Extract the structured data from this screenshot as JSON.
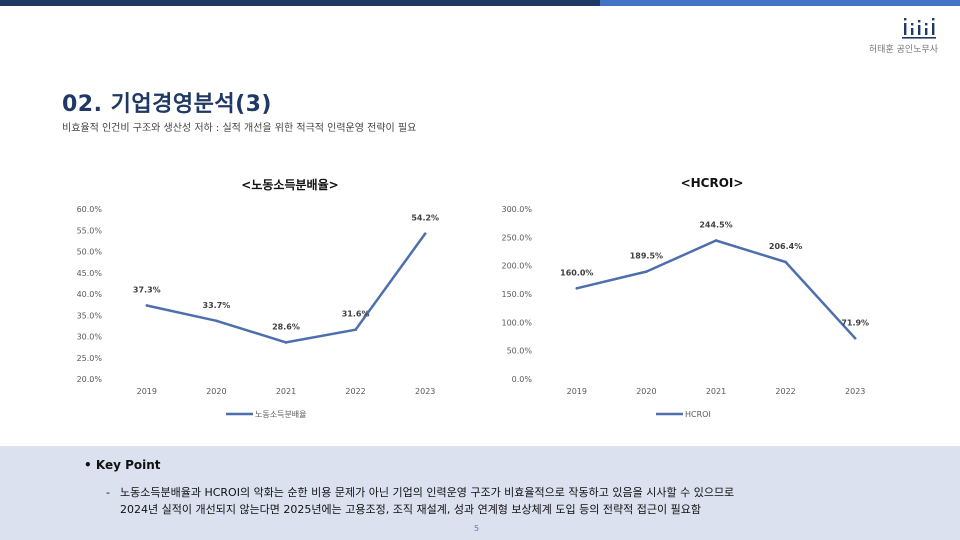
{
  "header": {
    "company": "허태훈 공인노무사",
    "title": "02. 기업경영분석(3)",
    "subtitle": "비효율적 인건비 구조와 생산성 저하 : 실적 개선을 위한 적극적 인력운영 전략이 필요"
  },
  "colors": {
    "primary": "#1f3864",
    "accent": "#4472c4",
    "series": "#4e6fae",
    "panel": "#dbe1ef"
  },
  "chart_data": [
    {
      "type": "line",
      "title": "<노동소득분배율>",
      "categories": [
        "2019",
        "2020",
        "2021",
        "2022",
        "2023"
      ],
      "series": [
        {
          "name": "노동소득분배율",
          "values": [
            37.3,
            33.7,
            28.6,
            31.6,
            54.2
          ]
        }
      ],
      "data_labels": [
        "37.3%",
        "33.7%",
        "28.6%",
        "31.6%",
        "54.2%"
      ],
      "ylim": [
        20,
        60
      ],
      "yticks": [
        "20.0%",
        "25.0%",
        "30.0%",
        "35.0%",
        "40.0%",
        "45.0%",
        "50.0%",
        "55.0%",
        "60.0%"
      ],
      "legend": "bottom",
      "grid": false
    },
    {
      "type": "line",
      "title": "<HCROI>",
      "categories": [
        "2019",
        "2020",
        "2021",
        "2022",
        "2023"
      ],
      "series": [
        {
          "name": "HCROI",
          "values": [
            160.0,
            189.5,
            244.5,
            206.4,
            71.9
          ]
        }
      ],
      "data_labels": [
        "160.0%",
        "189.5%",
        "244.5%",
        "206.4%",
        "71.9%"
      ],
      "ylim": [
        0,
        300
      ],
      "yticks": [
        "0.0%",
        "50.0%",
        "100.0%",
        "150.0%",
        "200.0%",
        "250.0%",
        "300.0%"
      ],
      "legend": "bottom",
      "grid": false
    }
  ],
  "keypoint": {
    "bullet": "•",
    "heading": "Key Point",
    "dash": "-",
    "line1": "노동소득분배율과 HCROI의 악화는 순한 비용 문제가 아닌 기업의 인력운영 구조가 비효율적으로 작동하고 있음을 시사할 수 있으므로",
    "line2": "2024년 실적이 개선되지 않는다면 2025년에는 고용조정, 조직 재설계, 성과 연계형 보상체계 도입 등의 전략적 접근이 필요함"
  },
  "page_number": "5"
}
